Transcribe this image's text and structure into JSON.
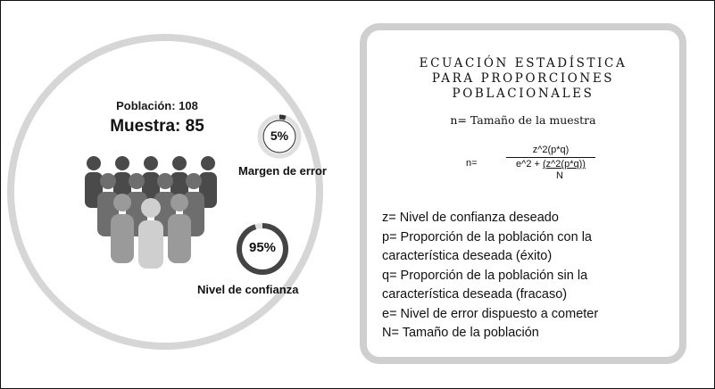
{
  "left": {
    "population_label": "Población: 108",
    "sample_label": "Muestra: 85",
    "error_ring": {
      "value_text": "5%",
      "caption": "Margen de error",
      "fraction": 0.05
    },
    "confidence_ring": {
      "value_text": "95%",
      "caption": "Nivel de confianza",
      "fraction": 0.95
    }
  },
  "panel": {
    "title_lines": [
      "ECUACIÓN ESTADÍSTICA",
      "PARA PROPORCIONES",
      "POBLACIONALES"
    ],
    "subtitle": "n= Tamaño de la muestra",
    "formula": {
      "lhs": "n=",
      "numerator": "z^2(p*q)",
      "denominator_prefix": "e^2 + ",
      "denominator_term": "(z^2(p*q))",
      "denominator_bottom": "N"
    },
    "definitions": [
      "z= Nivel de confianza deseado",
      "p= Proporción de la población con la",
      "característica deseada (éxito)",
      "q= Proporción de la población sin la",
      "característica deseada (fracaso)",
      "e= Nivel de error dispuesto a cometer",
      "N= Tamaño de la población"
    ]
  },
  "colors": {
    "ring_track": "#e0e0e0",
    "ring_fill": "#333333",
    "panel_border": "#cfcfcf",
    "big_ring": "#d6d6d6"
  }
}
